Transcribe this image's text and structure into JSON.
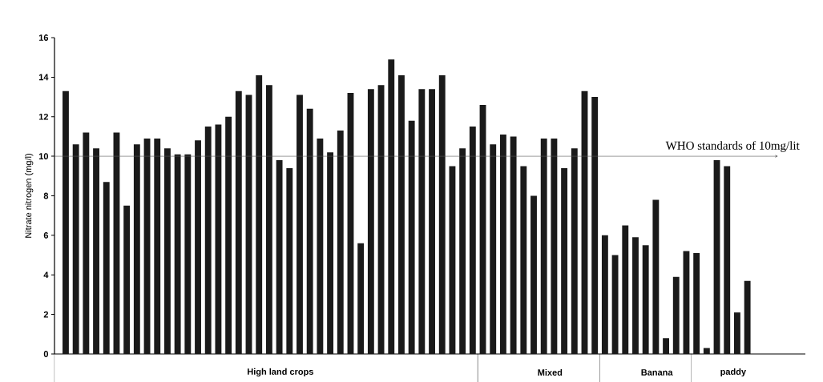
{
  "chart_data": {
    "type": "bar",
    "ylabel": "Nitrate nitrogen (mg/l)",
    "color": "#1a1a1a",
    "categories": [
      null,
      null,
      null,
      null,
      null,
      null,
      null,
      null,
      null,
      null,
      null,
      null,
      null,
      null,
      null,
      null,
      null,
      null,
      null,
      null,
      null,
      null,
      null,
      null,
      null,
      null,
      null,
      null,
      null,
      null,
      null,
      null,
      null,
      null,
      null,
      null,
      null,
      null,
      null,
      null,
      null,
      null,
      null,
      null,
      null,
      null,
      null,
      null,
      null,
      null,
      null,
      null,
      null,
      null,
      null,
      null,
      null,
      null,
      null,
      null,
      null,
      null,
      null,
      null,
      null,
      null,
      null,
      null
    ],
    "values": [
      13.3,
      10.6,
      11.2,
      10.4,
      8.7,
      11.2,
      7.5,
      10.6,
      10.9,
      10.9,
      10.4,
      10.1,
      10.1,
      10.8,
      11.5,
      11.6,
      12.0,
      13.3,
      13.1,
      14.1,
      13.6,
      9.8,
      9.4,
      13.1,
      12.4,
      10.9,
      10.2,
      11.3,
      13.2,
      5.6,
      13.4,
      13.6,
      14.9,
      14.1,
      11.8,
      13.4,
      13.4,
      14.1,
      9.5,
      10.4,
      11.5,
      12.6,
      10.6,
      11.1,
      11.0,
      9.5,
      8.0,
      10.9,
      10.9,
      9.4,
      10.4,
      13.3,
      13.0,
      6.0,
      5.0,
      6.5,
      5.9,
      5.5,
      7.8,
      0.8,
      3.9,
      5.2,
      5.1,
      0.3,
      9.8,
      9.5,
      2.1,
      3.7
    ],
    "ylim": [
      0,
      16
    ],
    "yticks": [
      0,
      2,
      4,
      6,
      8,
      10,
      12,
      14,
      16
    ],
    "ref_lines": [
      {
        "axis": "y",
        "value": 10,
        "label": "WHO standards of 10mg/lit"
      }
    ],
    "annotations": [
      "High land crops",
      "Mixed",
      "Banana",
      "paddy"
    ]
  }
}
